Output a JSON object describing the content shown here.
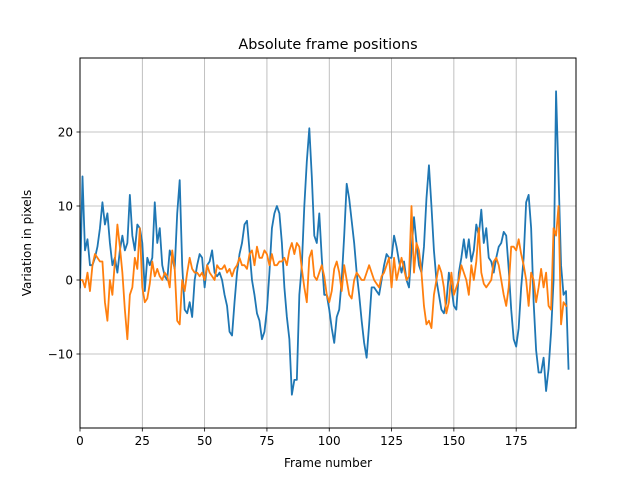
{
  "chart_data": {
    "type": "line",
    "title": "Absolute frame positions",
    "xlabel": "Frame number",
    "ylabel": "Variation in pixels",
    "xlim": [
      0,
      199
    ],
    "ylim": [
      -20,
      30
    ],
    "grid": true,
    "legend": "none",
    "x_ticks": [
      0,
      25,
      50,
      75,
      100,
      125,
      150,
      175
    ],
    "y_ticks": [
      -10,
      0,
      10,
      20
    ],
    "x_tick_labels": [
      "0",
      "25",
      "50",
      "75",
      "100",
      "125",
      "150",
      "175"
    ],
    "y_tick_labels": [
      "−10",
      "0",
      "10",
      "20"
    ],
    "x_start": 0,
    "x_step": 1,
    "series": [
      {
        "color": "#1f77b4",
        "values": [
          -1.0,
          14.0,
          4.0,
          5.5,
          2.0,
          2.0,
          3.0,
          4.5,
          7.0,
          10.5,
          7.5,
          9.0,
          5.0,
          2.0,
          3.0,
          1.0,
          4.0,
          6.0,
          4.0,
          5.0,
          11.5,
          6.0,
          4.0,
          7.5,
          7.0,
          5.0,
          -1.5,
          3.0,
          2.0,
          3.0,
          10.5,
          5.0,
          7.0,
          2.0,
          0.5,
          0.0,
          4.0,
          3.0,
          1.5,
          9.0,
          13.5,
          2.0,
          -4.0,
          -4.5,
          -3.0,
          -5.0,
          0.0,
          2.0,
          3.5,
          3.0,
          -1.0,
          2.0,
          2.5,
          4.0,
          1.0,
          0.5,
          1.0,
          0.0,
          -2.0,
          -3.5,
          -7.0,
          -7.5,
          -3.0,
          1.0,
          3.5,
          5.0,
          7.5,
          8.0,
          4.0,
          0.0,
          -2.0,
          -4.5,
          -5.5,
          -8.0,
          -7.0,
          -4.0,
          1.0,
          7.0,
          9.0,
          10.0,
          9.0,
          5.0,
          -1.0,
          -5.0,
          -8.0,
          -15.5,
          -13.5,
          -13.5,
          -2.0,
          2.0,
          10.0,
          16.0,
          20.5,
          14.0,
          6.0,
          5.0,
          9.0,
          3.0,
          -2.0,
          -2.0,
          -4.0,
          -6.5,
          -8.5,
          -5.0,
          -4.0,
          0.0,
          6.0,
          13.0,
          11.0,
          8.0,
          5.0,
          1.0,
          -2.0,
          -5.5,
          -8.5,
          -10.5,
          -6.0,
          -1.0,
          -1.0,
          -1.5,
          -2.0,
          0.0,
          2.0,
          3.5,
          3.0,
          3.0,
          6.0,
          4.5,
          2.5,
          1.0,
          2.5,
          0.0,
          -1.0,
          4.0,
          8.5,
          5.0,
          2.0,
          1.0,
          4.5,
          11.0,
          15.5,
          10.0,
          4.0,
          0.0,
          -2.0,
          -4.0,
          -4.5,
          -3.0,
          1.0,
          -1.0,
          -3.5,
          -4.0,
          1.0,
          3.0,
          5.5,
          3.0,
          5.5,
          2.5,
          4.0,
          7.5,
          6.0,
          9.5,
          5.0,
          7.0,
          3.0,
          2.5,
          1.0,
          3.0,
          4.5,
          5.0,
          6.5,
          6.0,
          1.5,
          -4.0,
          -8.0,
          -9.0,
          -6.5,
          -1.0,
          3.0,
          10.5,
          11.5,
          7.0,
          -3.0,
          -9.5,
          -12.5,
          -12.5,
          -10.5,
          -15.0,
          -12.0,
          -7.0,
          0.0,
          25.5,
          14.0,
          2.0,
          -2.0,
          -1.5,
          -12.0
        ]
      },
      {
        "color": "#ff7f0e",
        "values": [
          0.0,
          0.0,
          -1.0,
          1.0,
          -1.5,
          2.0,
          3.5,
          3.0,
          2.5,
          2.5,
          -3.0,
          -5.5,
          0.0,
          -2.0,
          2.5,
          7.5,
          4.5,
          1.0,
          -4.0,
          -8.0,
          -2.0,
          -1.0,
          3.0,
          1.5,
          7.0,
          -1.0,
          -3.0,
          -2.5,
          -0.5,
          2.5,
          0.5,
          1.5,
          0.5,
          0.0,
          1.0,
          0.5,
          -1.0,
          4.0,
          1.5,
          -5.5,
          -6.0,
          0.0,
          -1.5,
          1.0,
          3.0,
          1.5,
          1.0,
          1.0,
          0.5,
          1.0,
          0.0,
          2.0,
          1.0,
          0.5,
          0.0,
          2.0,
          1.5,
          1.5,
          2.0,
          1.0,
          1.5,
          0.5,
          1.5,
          2.0,
          3.0,
          2.0,
          2.0,
          1.5,
          3.5,
          4.0,
          2.0,
          4.5,
          3.0,
          3.0,
          4.0,
          3.5,
          2.0,
          3.5,
          2.0,
          2.0,
          2.5,
          2.5,
          3.0,
          2.0,
          4.0,
          5.0,
          3.5,
          5.0,
          4.5,
          1.5,
          -1.0,
          -3.0,
          3.0,
          4.0,
          0.5,
          0.0,
          1.0,
          2.0,
          0.5,
          -2.0,
          -3.0,
          -1.5,
          1.5,
          2.5,
          1.0,
          -1.5,
          2.0,
          0.0,
          -2.0,
          -2.5,
          0.0,
          1.0,
          0.5,
          0.0,
          0.0,
          1.0,
          2.0,
          1.0,
          0.0,
          -0.5,
          -1.0,
          0.5,
          1.0,
          2.0,
          3.0,
          -1.0,
          3.0,
          0.0,
          1.5,
          3.0,
          1.5,
          0.0,
          0.5,
          10.0,
          1.0,
          5.0,
          4.0,
          1.0,
          -3.5,
          -6.0,
          -5.5,
          -6.5,
          -2.0,
          0.0,
          2.0,
          1.0,
          -1.0,
          -4.5,
          -3.0,
          1.0,
          -2.0,
          -1.0,
          0.0,
          2.0,
          1.0,
          0.0,
          -2.0,
          2.0,
          0.0,
          2.5,
          7.0,
          1.0,
          -0.5,
          -1.0,
          -0.5,
          0.0,
          2.5,
          3.0,
          2.0,
          0.0,
          -2.0,
          -3.5,
          -1.0,
          4.5,
          4.5,
          4.0,
          5.5,
          3.5,
          2.0,
          0.0,
          -3.5,
          1.0,
          0.0,
          -3.0,
          -1.0,
          1.5,
          -1.0,
          1.0,
          -3.5,
          -4.0,
          7.0,
          6.0,
          10.0,
          -6.0,
          -3.0,
          -3.5
        ]
      }
    ]
  }
}
